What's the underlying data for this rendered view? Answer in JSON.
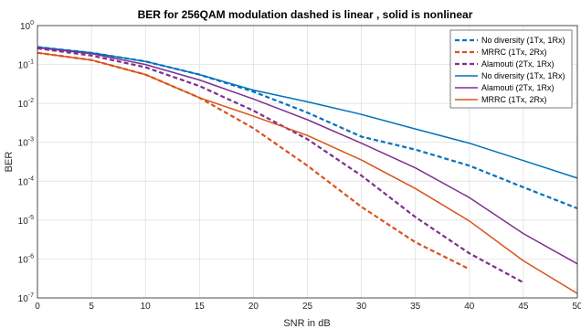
{
  "chart_data": {
    "type": "line",
    "title": "BER for 256QAM modulation dashed is linear , solid is nonlinear",
    "xlabel": "SNR in dB",
    "ylabel": "BER",
    "xlim": [
      0,
      50
    ],
    "ylim": [
      1e-07,
      1
    ],
    "yscale": "log",
    "grid": true,
    "legend_position": "top-right",
    "x_ticks": [
      "0",
      "5",
      "10",
      "15",
      "20",
      "25",
      "30",
      "35",
      "40",
      "45",
      "50"
    ],
    "y_ticks": [
      {
        "base": "10",
        "exp": "0"
      },
      {
        "base": "10",
        "exp": "-1"
      },
      {
        "base": "10",
        "exp": "-2"
      },
      {
        "base": "10",
        "exp": "-3"
      },
      {
        "base": "10",
        "exp": "-4"
      },
      {
        "base": "10",
        "exp": "-5"
      },
      {
        "base": "10",
        "exp": "-6"
      },
      {
        "base": "10",
        "exp": "-7"
      }
    ],
    "series": [
      {
        "name": "No diversity (1Tx, 1Rx)",
        "style": "dashed",
        "color": "#0072BD",
        "x": [
          0,
          5,
          10,
          15,
          20,
          25,
          30,
          35,
          40,
          45,
          50
        ],
        "y": [
          0.28,
          0.2,
          0.12,
          0.055,
          0.02,
          0.0058,
          0.0014,
          0.00065,
          0.00025,
          7e-05,
          2e-05
        ]
      },
      {
        "name": "MRRC (1Tx, 2Rx)",
        "style": "dashed",
        "color": "#D95319",
        "x": [
          0,
          5,
          10,
          15,
          20,
          25,
          30,
          35,
          40
        ],
        "y": [
          0.2,
          0.13,
          0.055,
          0.014,
          0.0023,
          0.00025,
          2.2e-05,
          2.7e-06,
          5.5e-07
        ]
      },
      {
        "name": "Alamouti (2Tx, 1Rx)",
        "style": "dashed",
        "color": "#7E2F8E",
        "x": [
          0,
          5,
          10,
          15,
          20,
          25,
          30,
          35,
          40,
          45
        ],
        "y": [
          0.26,
          0.17,
          0.085,
          0.028,
          0.0065,
          0.0012,
          0.00014,
          1.2e-05,
          1.4e-06,
          2.5e-07
        ]
      },
      {
        "name": "No diversity (1Tx, 1Rx)",
        "style": "solid",
        "color": "#0072BD",
        "x": [
          0,
          5,
          10,
          15,
          20,
          25,
          30,
          35,
          40,
          45,
          50
        ],
        "y": [
          0.28,
          0.2,
          0.12,
          0.055,
          0.022,
          0.011,
          0.0052,
          0.0022,
          0.00095,
          0.00034,
          0.00012
        ]
      },
      {
        "name": "Alamouti (2Tx, 1Rx)",
        "style": "solid",
        "color": "#7E2F8E",
        "x": [
          0,
          5,
          10,
          15,
          20,
          25,
          30,
          35,
          40,
          45,
          50
        ],
        "y": [
          0.27,
          0.19,
          0.1,
          0.04,
          0.013,
          0.0038,
          0.00095,
          0.00022,
          3.8e-05,
          4.5e-06,
          7.5e-07
        ]
      },
      {
        "name": "MRRC (1Tx, 2Rx)",
        "style": "solid",
        "color": "#D95319",
        "x": [
          0,
          5,
          10,
          15,
          20,
          25,
          30,
          35,
          40,
          45,
          50
        ],
        "y": [
          0.2,
          0.13,
          0.055,
          0.014,
          0.0047,
          0.0015,
          0.00035,
          6.5e-05,
          9.5e-06,
          9e-07,
          1.3e-07
        ]
      }
    ]
  }
}
